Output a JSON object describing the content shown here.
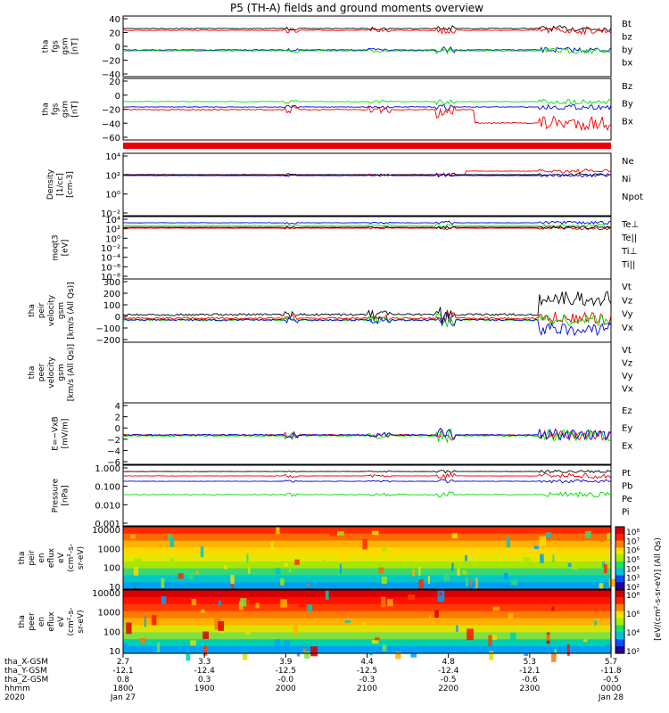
{
  "title": "P5 (TH-A) fields and ground moments overview",
  "colors": {
    "black": "#000000",
    "red": "#ee0000",
    "green": "#00dd00",
    "blue": "#0000dd"
  },
  "panels": [
    {
      "id": "fgs",
      "ylabel": [
        "tha",
        "fgs",
        "gsm",
        "[nT]"
      ],
      "ticks": [
        "40",
        "20",
        "0",
        "−20",
        "−40"
      ],
      "legend": [
        {
          "text": "Bt",
          "color": "black"
        },
        {
          "text": "bz",
          "color": "red"
        },
        {
          "text": "by",
          "color": "green"
        },
        {
          "text": "bx",
          "color": "blue"
        }
      ]
    },
    {
      "id": "fgs_gse",
      "ylabel": [
        "tha",
        "fgs",
        "gsm",
        "[nT]"
      ],
      "ticks": [
        "20",
        "0",
        "−20",
        "−40",
        "−60"
      ],
      "legend": [
        {
          "text": "Bz",
          "color": "red"
        },
        {
          "text": "By",
          "color": "green"
        },
        {
          "text": "Bx",
          "color": "blue"
        }
      ]
    },
    {
      "id": "density",
      "ylabel": [
        "Density",
        "[1/cc]",
        "[cm-3]"
      ],
      "ticks": [
        "10⁴",
        "10²",
        "10⁰",
        "10⁻²"
      ],
      "legend": [
        {
          "text": "Ne",
          "color": "red"
        },
        {
          "text": "Ni",
          "color": "black"
        },
        {
          "text": "Npot",
          "color": "blue"
        }
      ]
    },
    {
      "id": "temp",
      "ylabel": [
        "moqt3",
        "[eV]"
      ],
      "ticks": [
        "10⁴",
        "10²",
        "10⁰",
        "10⁻²",
        "10⁻⁴",
        "10⁻⁶",
        "10⁻⁸"
      ],
      "legend": [
        {
          "text": "Te⊥",
          "color": "red"
        },
        {
          "text": "Te||",
          "color": "black"
        },
        {
          "text": "Ti⊥",
          "color": "blue"
        },
        {
          "text": "Ti||",
          "color": "green"
        }
      ]
    },
    {
      "id": "vel_i",
      "ylabel": [
        "tha",
        "peir",
        "velocity",
        "gsm",
        "[km/s (All Qs)]"
      ],
      "ticks": [
        "300",
        "200",
        "100",
        "0",
        "−100",
        "−200"
      ],
      "legend": [
        {
          "text": "Vt",
          "color": "black"
        },
        {
          "text": "Vz",
          "color": "red"
        },
        {
          "text": "Vy",
          "color": "green"
        },
        {
          "text": "Vx",
          "color": "blue"
        }
      ]
    },
    {
      "id": "vel_e",
      "ylabel": [
        "tha",
        "peer",
        "velocity",
        "gsm",
        "[km/s (All Qs)]"
      ],
      "ticks": [],
      "legend": [
        {
          "text": "Vt",
          "color": "black"
        },
        {
          "text": "Vz",
          "color": "red"
        },
        {
          "text": "Vy",
          "color": "green"
        },
        {
          "text": "Vx",
          "color": "blue"
        }
      ]
    },
    {
      "id": "efield",
      "ylabel": [
        "E=−VxB",
        "[mV/m]"
      ],
      "ticks": [
        "4",
        "2",
        "0",
        "−2",
        "−4",
        "−6"
      ],
      "legend": [
        {
          "text": "Ez",
          "color": "red"
        },
        {
          "text": "Ey",
          "color": "green"
        },
        {
          "text": "Ex",
          "color": "blue"
        }
      ]
    },
    {
      "id": "pressure",
      "ylabel": [
        "Pressure",
        "[nPa]"
      ],
      "ticks": [
        "1.000",
        "0.100",
        "0.010",
        "0.001"
      ],
      "legend": [
        {
          "text": "Pt",
          "color": "black"
        },
        {
          "text": "Pb",
          "color": "red"
        },
        {
          "text": "Pe",
          "color": "green"
        },
        {
          "text": "Pi",
          "color": "blue"
        }
      ]
    },
    {
      "id": "spec_i",
      "ylabel": [
        "tha",
        "peir",
        "en",
        "eflux",
        "eV",
        "(cm²-s-",
        "sr-eV)"
      ],
      "ticks": [
        "10000",
        "1000",
        "100",
        "10"
      ],
      "legend": []
    },
    {
      "id": "spec_e",
      "ylabel": [
        "tha",
        "peer",
        "en",
        "eflux",
        "eV",
        "(cm²-s-",
        "sr-eV)"
      ],
      "ticks": [
        "10000",
        "1000",
        "100",
        "10"
      ],
      "legend": []
    }
  ],
  "colorbar": {
    "label": "[eV/(cm²-s-sr-eV)] (All Qs)",
    "ticks_i": [
      "10⁸",
      "10⁷",
      "10⁶",
      "10⁵",
      "10⁴",
      "10³",
      "10²"
    ],
    "ticks_e": [
      "10⁸",
      "10⁶",
      "10⁴",
      "10²"
    ]
  },
  "footer": {
    "row_labels": [
      "tha_X-GSM",
      "tha_Y-GSM",
      "tha_Z-GSM",
      "hhmm",
      "2020"
    ],
    "columns": [
      {
        "x": "2.7",
        "y": "-12.1",
        "z": "0.8",
        "hhmm": "1800",
        "date": "Jan 27"
      },
      {
        "x": "3.3",
        "y": "-12.4",
        "z": "0.3",
        "hhmm": "1900",
        "date": ""
      },
      {
        "x": "3.9",
        "y": "-12.5",
        "z": "-0.0",
        "hhmm": "2000",
        "date": ""
      },
      {
        "x": "4.4",
        "y": "-12.5",
        "z": "-0.3",
        "hhmm": "2100",
        "date": ""
      },
      {
        "x": "4.8",
        "y": "-12.4",
        "z": "-0.5",
        "hhmm": "2200",
        "date": ""
      },
      {
        "x": "5.3",
        "y": "-12.1",
        "z": "-0.6",
        "hhmm": "2300",
        "date": ""
      },
      {
        "x": "5.7",
        "y": "-11.8",
        "z": "-0.5",
        "hhmm": "0000",
        "date": "Jan 28"
      }
    ]
  },
  "chart_data": {
    "type": "line",
    "title": "P5 (TH-A) fields and ground moments overview",
    "x_time_ticks": [
      "1800",
      "1900",
      "2000",
      "2100",
      "2200",
      "2300",
      "0000"
    ],
    "x_start": "2020 Jan 27 18:00",
    "x_end": "2020 Jan 28 00:00",
    "series_summary": [
      {
        "panel": "fgs",
        "name": "Bt",
        "approx_level_nT": 25
      },
      {
        "panel": "fgs",
        "name": "bz",
        "approx_level_nT": 25
      },
      {
        "panel": "fgs",
        "name": "by",
        "approx_level_nT": -3
      },
      {
        "panel": "fgs",
        "name": "bx",
        "approx_level_nT": -3
      },
      {
        "panel": "vel_i",
        "name": "Vt",
        "approx_level_kms": 30
      }
    ],
    "ylim": {
      "fgs": [
        -40,
        40
      ],
      "fgs_gse": [
        -70,
        20
      ],
      "vel_i": [
        -200,
        300
      ],
      "efield": [
        -6,
        4
      ]
    }
  }
}
